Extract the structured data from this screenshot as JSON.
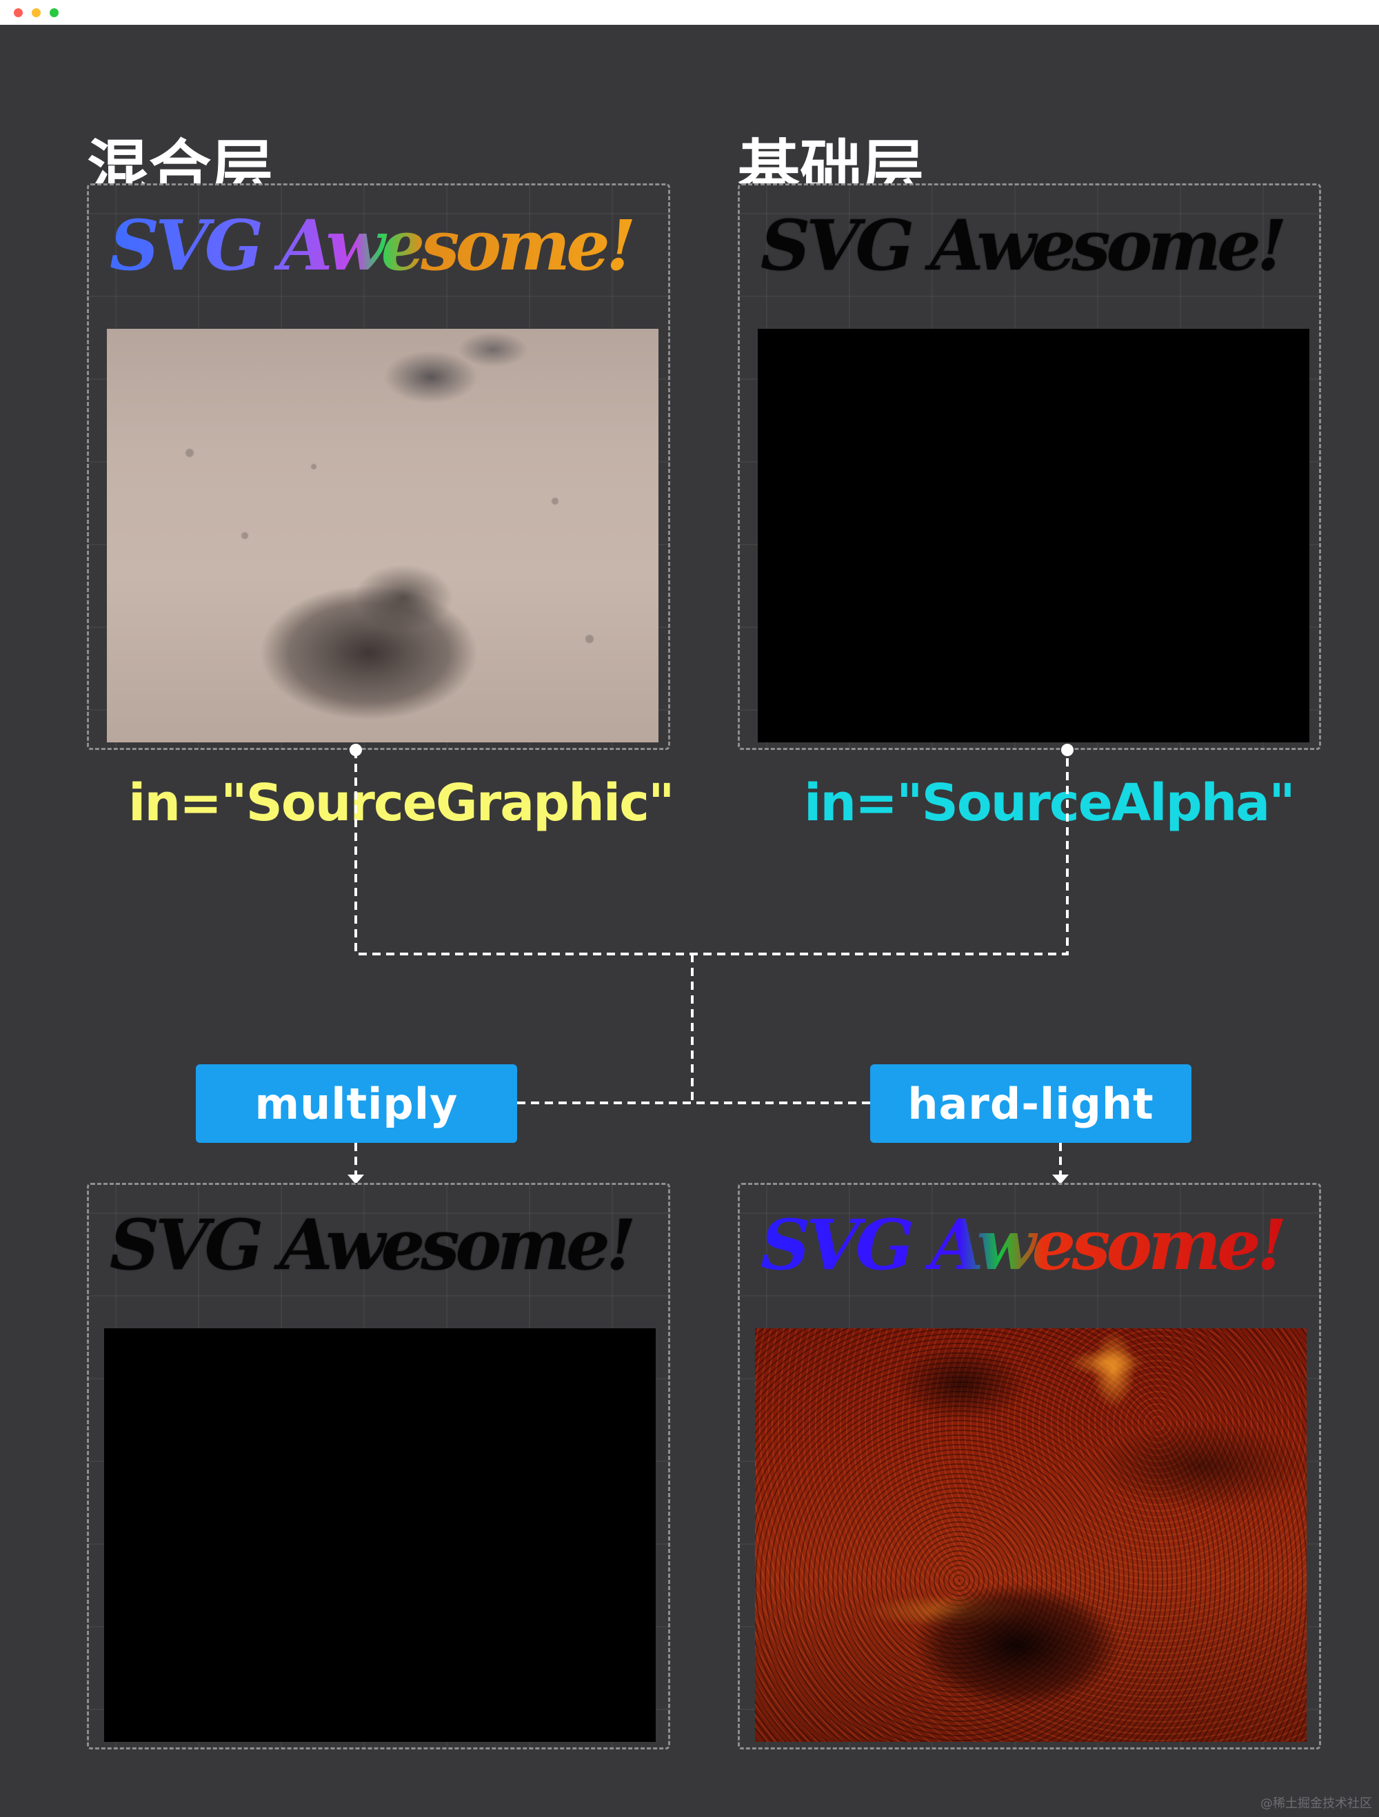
{
  "window": {
    "controls": [
      {
        "name": "close",
        "color": "#ff5f57"
      },
      {
        "name": "minimize",
        "color": "#febc2e"
      },
      {
        "name": "zoom",
        "color": "#28c840"
      }
    ]
  },
  "headings": {
    "blend_layer": "混合层",
    "base_layer": "基础层"
  },
  "panels": {
    "source_graphic": {
      "text": "SVG Awesome!",
      "image": "sand-footprint-photo"
    },
    "source_alpha": {
      "text": "SVG Awesome!",
      "image": "black-fill"
    },
    "result_multiply": {
      "text": "SVG Awesome!",
      "image": "black-fill"
    },
    "result_hard_light": {
      "text": "SVG Awesome!",
      "image": "red-tinted-footprint-photo"
    }
  },
  "inputs": {
    "source_graphic": {
      "label": "in=\"SourceGraphic\"",
      "color": "#f9f871"
    },
    "source_alpha": {
      "label": "in=\"SourceAlpha\"",
      "color": "#16d9e3"
    }
  },
  "modes": {
    "multiply": "multiply",
    "hard_light": "hard-light"
  },
  "colors": {
    "background": "#38383b",
    "button": "#1aa0ef",
    "connector": "#ffffff",
    "panel_border": "#8f8f8f"
  },
  "watermark": "@稀土掘金技术社区"
}
